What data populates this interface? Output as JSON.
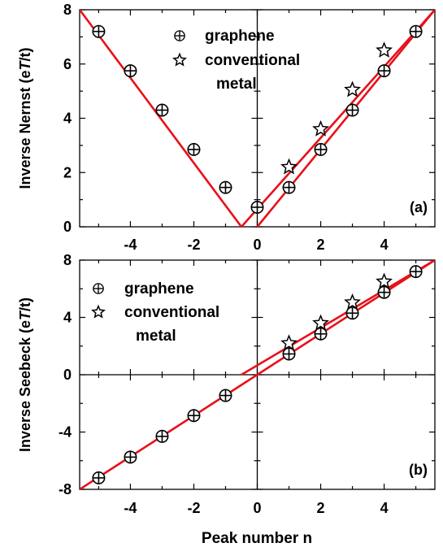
{
  "chart_data": [
    {
      "type": "scatter",
      "panel_label": "(a)",
      "ylabel": "Inverse Nernst (e",
      "ylabel_italic": "T",
      "ylabel_tail": "/t)",
      "xlim": [
        -5.6,
        5.6
      ],
      "ylim": [
        0,
        8
      ],
      "xticks": [
        -4,
        -2,
        0,
        2,
        4
      ],
      "xtick_labels": [
        "-4",
        "-2",
        "0",
        "2",
        "4"
      ],
      "yticks": [
        0,
        2,
        4,
        6,
        8
      ],
      "ytick_labels": [
        "0",
        "2",
        "4",
        "6",
        "8"
      ],
      "legend": {
        "position": "top-center",
        "entries": [
          "graphene",
          "conventional",
          "metal"
        ]
      },
      "series": [
        {
          "name": "graphene",
          "marker": "circle-plus",
          "x": [
            -5,
            -4,
            -3,
            -2,
            -1,
            0,
            1,
            2,
            3,
            4,
            5
          ],
          "y": [
            7.2,
            5.75,
            4.3,
            2.85,
            1.45,
            0.72,
            1.45,
            2.85,
            4.3,
            5.75,
            7.2
          ]
        },
        {
          "name": "conventional metal",
          "marker": "star",
          "x": [
            1,
            2,
            3,
            4
          ],
          "y": [
            2.2,
            3.6,
            5.05,
            6.5
          ]
        }
      ],
      "fit_lines": [
        {
          "x": [
            -5.6,
            -0.5
          ],
          "y": [
            8.0,
            0.0
          ]
        },
        {
          "x": [
            -0.5,
            5.6
          ],
          "y": [
            0.0,
            8.0
          ]
        },
        {
          "x": [
            0,
            5.6
          ],
          "y": [
            0.0,
            8.0
          ]
        }
      ],
      "fit_color": "#e8101a"
    },
    {
      "type": "scatter",
      "panel_label": "(b)",
      "ylabel": "Inverse Seebeck (e",
      "ylabel_italic": "T",
      "ylabel_tail": "/t)",
      "xlabel": "Peak number n",
      "xlim": [
        -5.6,
        5.6
      ],
      "ylim": [
        -8,
        8
      ],
      "xticks": [
        -4,
        -2,
        0,
        2,
        4
      ],
      "xtick_labels": [
        "-4",
        "-2",
        "0",
        "2",
        "4"
      ],
      "yticks": [
        -8,
        -4,
        0,
        4,
        8
      ],
      "ytick_labels": [
        "-8",
        "-4",
        "0",
        "4",
        "8"
      ],
      "legend": {
        "position": "top-left",
        "entries": [
          "graphene",
          "conventional",
          "metal"
        ]
      },
      "series": [
        {
          "name": "graphene",
          "marker": "circle-plus",
          "x": [
            -5,
            -4,
            -3,
            -2,
            -1,
            1,
            2,
            3,
            4,
            5
          ],
          "y": [
            -7.2,
            -5.75,
            -4.3,
            -2.85,
            -1.45,
            1.45,
            2.85,
            4.3,
            5.75,
            7.2
          ]
        },
        {
          "name": "conventional metal",
          "marker": "star",
          "x": [
            1,
            2,
            3,
            4
          ],
          "y": [
            2.2,
            3.6,
            5.05,
            6.5
          ]
        }
      ],
      "fit_lines": [
        {
          "x": [
            -5.6,
            5.6
          ],
          "y": [
            -8.0,
            8.0
          ]
        },
        {
          "x": [
            -0.5,
            5.6
          ],
          "y": [
            0.0,
            8.0
          ]
        }
      ],
      "fit_color": "#e8101a"
    }
  ]
}
